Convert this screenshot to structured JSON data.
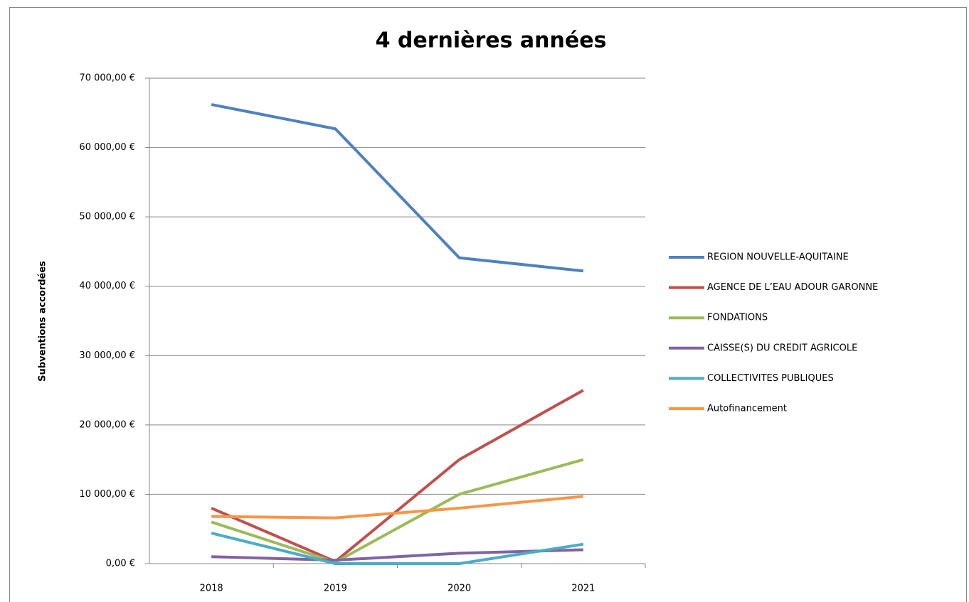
{
  "chart_data": {
    "type": "line",
    "title": "4 dernières années",
    "y_label": "Subventions accordées",
    "categories": [
      "2018",
      "2019",
      "2020",
      "2021"
    ],
    "series": [
      {
        "name": "REGION NOUVELLE-AQUITAINE",
        "color": "#4f81bd",
        "values": [
          66200,
          62700,
          44100,
          42200
        ]
      },
      {
        "name": "AGENCE DE L’EAU ADOUR GARONNE",
        "color": "#c0504d",
        "values": [
          8000,
          300,
          15000,
          25000
        ]
      },
      {
        "name": "FONDATIONS",
        "color": "#9bbb59",
        "values": [
          6000,
          200,
          10000,
          15000
        ]
      },
      {
        "name": "CAISSE(S) DU CREDIT AGRICOLE",
        "color": "#8064a2",
        "values": [
          1000,
          500,
          1500,
          2000
        ]
      },
      {
        "name": "COLLECTIVITES PUBLIQUES",
        "color": "#4bacc6",
        "values": [
          4400,
          0,
          0,
          2800
        ]
      },
      {
        "name": "Autofinancement",
        "color": "#f79646",
        "values": [
          6800,
          6600,
          8000,
          9700
        ]
      }
    ],
    "ylim": [
      0,
      70000
    ],
    "yticks": [
      {
        "value": 0,
        "label": "0,00 €"
      },
      {
        "value": 10000,
        "label": "10 000,00 €"
      },
      {
        "value": 20000,
        "label": "20 000,00 €"
      },
      {
        "value": 30000,
        "label": "30 000,00 €"
      },
      {
        "value": 40000,
        "label": "40 000,00 €"
      },
      {
        "value": 50000,
        "label": "50 000,00 €"
      },
      {
        "value": 60000,
        "label": "60 000,00 €"
      },
      {
        "value": 70000,
        "label": "70 000,00 €"
      }
    ],
    "grid": true,
    "legend": "right"
  }
}
